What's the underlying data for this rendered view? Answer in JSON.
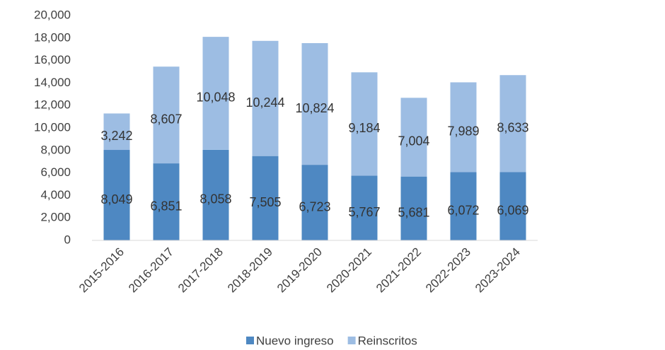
{
  "chart_data": {
    "type": "stacked_bar",
    "categories": [
      "2015-2016",
      "2016-2017",
      "2017-2018",
      "2018-2019",
      "2019-2020",
      "2020-2021",
      "2021-2022",
      "2022-2023",
      "2023-2024"
    ],
    "series": [
      {
        "name": "Nuevo ingreso",
        "color": "#4e88c2",
        "values": [
          8049,
          6851,
          8058,
          7505,
          6723,
          5767,
          5681,
          6072,
          6069
        ],
        "value_labels": [
          "8,049",
          "6,851",
          "8,058",
          "7,505",
          "6,723",
          "5,767",
          "5,681",
          "6,072",
          "6,069"
        ]
      },
      {
        "name": "Reinscritos",
        "color": "#9dbde3",
        "values": [
          3242,
          8607,
          10048,
          10244,
          10824,
          9184,
          7004,
          7989,
          8633
        ],
        "value_labels": [
          "3,242",
          "8,607",
          "10,048",
          "10,244",
          "10,824",
          "9,184",
          "7,004",
          "7,989",
          "8,633"
        ]
      }
    ],
    "ylim": [
      0,
      20000
    ],
    "yticks": [
      0,
      {
        "value": 2000,
        "label": "2,000"
      },
      {
        "value": 4000,
        "label": "4,000"
      },
      {
        "value": 6000,
        "label": "6,000"
      },
      {
        "value": 8000,
        "label": "8,000"
      },
      {
        "value": 10000,
        "label": "10,000"
      },
      {
        "value": 12000,
        "label": "12,000"
      },
      {
        "value": 14000,
        "label": "14,000"
      },
      {
        "value": 16000,
        "label": "16,000"
      },
      {
        "value": 18000,
        "label": "18,000"
      },
      {
        "value": 20000,
        "label": "20,000"
      }
    ],
    "grid": false,
    "legend": "bottom"
  }
}
